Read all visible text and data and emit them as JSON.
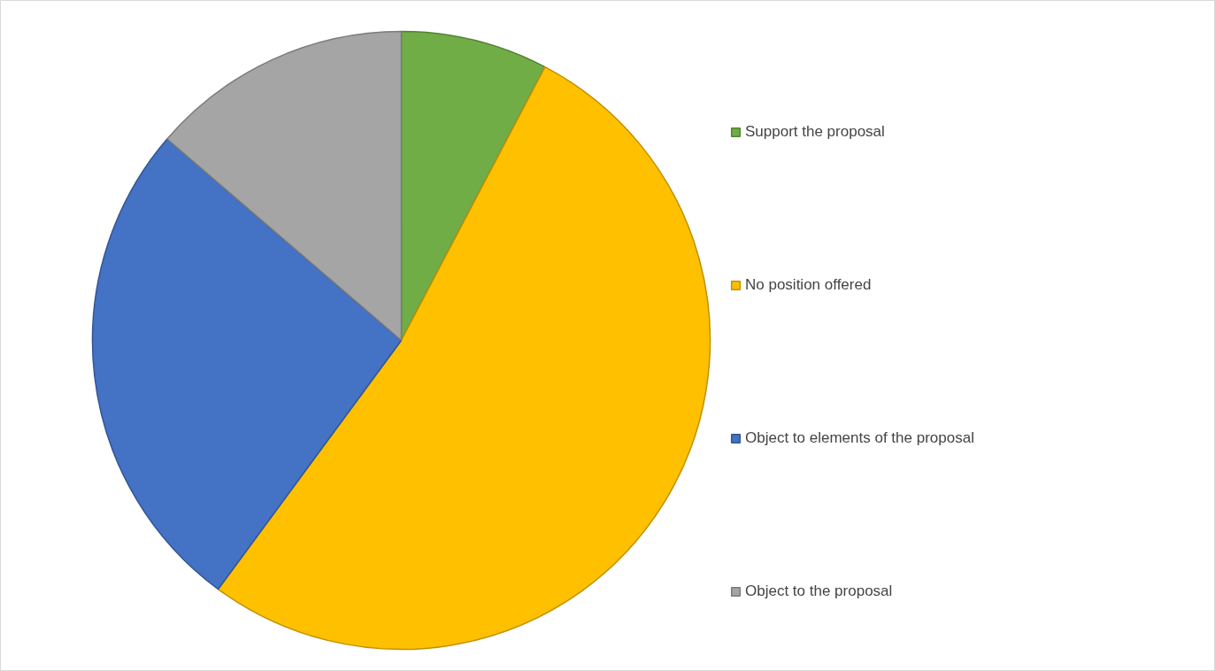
{
  "chart_data": {
    "type": "pie",
    "categories": [
      "Support the proposal",
      "No position offered",
      "Object to elements of the proposal",
      "Object to the proposal"
    ],
    "values": [
      7.7,
      52.4,
      26.2,
      13.7
    ],
    "colors": [
      "#70ad47",
      "#ffc000",
      "#4472c4",
      "#a5a5a5"
    ],
    "legend": "right"
  }
}
